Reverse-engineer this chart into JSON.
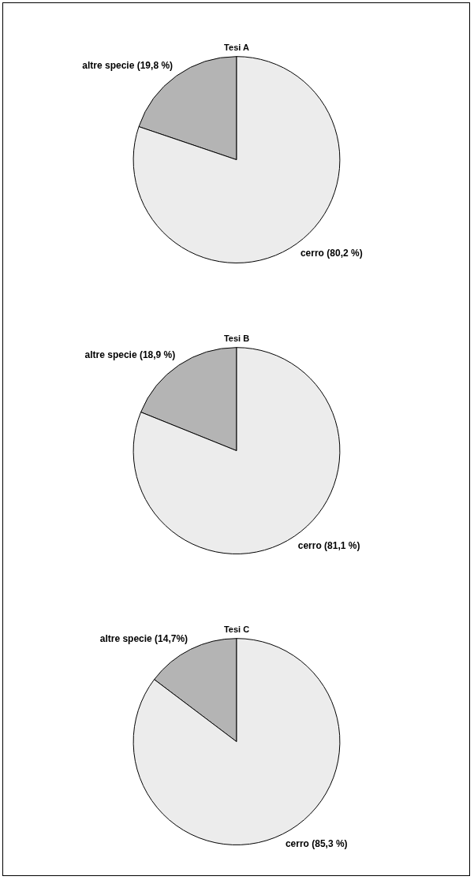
{
  "chart_data": [
    {
      "type": "pie",
      "title": "Tesi A",
      "categories": [
        "altre specie (19,8 %)",
        "cerro (80,2 %)"
      ],
      "values": [
        19.8,
        80.2
      ],
      "colors": [
        "#b4b4b4",
        "#ececec"
      ],
      "legend": false
    },
    {
      "type": "pie",
      "title": "Tesi B",
      "categories": [
        "altre specie (18,9 %)",
        "cerro (81,1 %)"
      ],
      "values": [
        18.9,
        81.1
      ],
      "colors": [
        "#b4b4b4",
        "#ececec"
      ],
      "legend": false
    },
    {
      "type": "pie",
      "title": "Tesi C",
      "categories": [
        "altre specie (14,7%)",
        "cerro (85,3 %)"
      ],
      "values": [
        14.7,
        85.3
      ],
      "colors": [
        "#b4b4b4",
        "#ececec"
      ],
      "legend": false
    }
  ]
}
